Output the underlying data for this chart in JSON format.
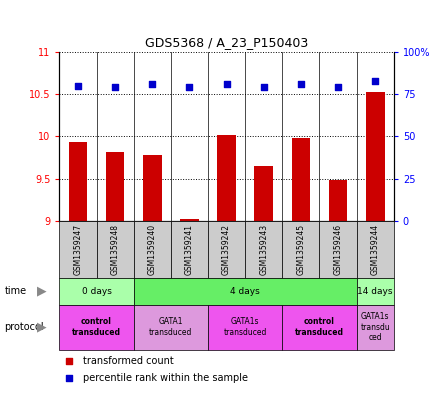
{
  "title": "GDS5368 / A_23_P150403",
  "samples": [
    "GSM1359247",
    "GSM1359248",
    "GSM1359240",
    "GSM1359241",
    "GSM1359242",
    "GSM1359243",
    "GSM1359245",
    "GSM1359246",
    "GSM1359244"
  ],
  "transformed_counts": [
    9.93,
    9.82,
    9.78,
    9.02,
    10.02,
    9.65,
    9.98,
    9.48,
    10.52
  ],
  "percentile_ranks": [
    80,
    79,
    81,
    79,
    81,
    79,
    81,
    79,
    83
  ],
  "ylim_left": [
    9,
    11
  ],
  "ylim_right": [
    0,
    100
  ],
  "yticks_left": [
    9,
    9.5,
    10,
    10.5,
    11
  ],
  "ytick_labels_left": [
    "9",
    "9.5",
    "10",
    "10.5",
    "11"
  ],
  "yticks_right": [
    0,
    25,
    50,
    75,
    100
  ],
  "ytick_labels_right": [
    "0",
    "25",
    "50",
    "75",
    "100%"
  ],
  "bar_color": "#cc0000",
  "dot_color": "#0000cc",
  "time_groups": [
    {
      "label": "0 days",
      "start": 0,
      "end": 2,
      "color": "#aaffaa"
    },
    {
      "label": "4 days",
      "start": 2,
      "end": 8,
      "color": "#66ee66"
    },
    {
      "label": "14 days",
      "start": 8,
      "end": 9,
      "color": "#aaffaa"
    }
  ],
  "protocol_groups": [
    {
      "label": "control\ntransduced",
      "start": 0,
      "end": 2,
      "color": "#ee55ee",
      "bold": true
    },
    {
      "label": "GATA1\ntransduced",
      "start": 2,
      "end": 4,
      "color": "#dd99dd",
      "bold": false
    },
    {
      "label": "GATA1s\ntransduced",
      "start": 4,
      "end": 6,
      "color": "#ee55ee",
      "bold": false
    },
    {
      "label": "control\ntransduced",
      "start": 6,
      "end": 8,
      "color": "#ee55ee",
      "bold": true
    },
    {
      "label": "GATA1s\ntransdu\nced",
      "start": 8,
      "end": 9,
      "color": "#dd99dd",
      "bold": false
    }
  ],
  "sample_bg_color": "#cccccc",
  "dotted_line_color": "#000000"
}
